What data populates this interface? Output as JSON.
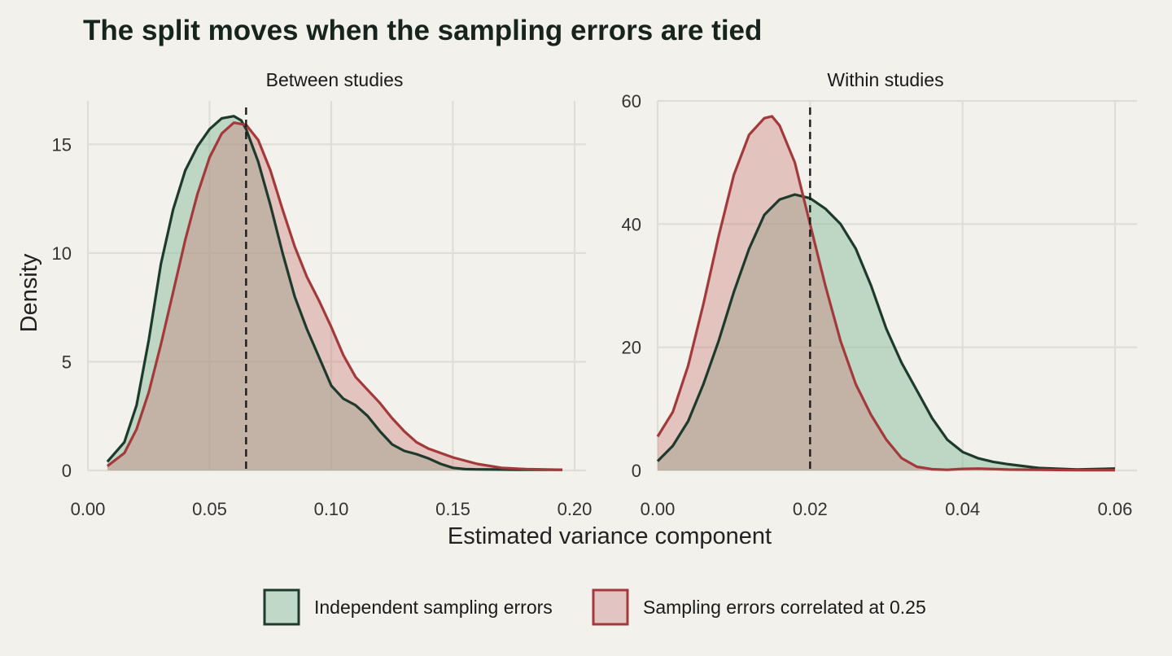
{
  "chart_data": {
    "type": "area",
    "title": "The split moves when the sampling errors are tied",
    "xlabel": "Estimated variance component",
    "ylabel": "Density",
    "legend": {
      "position": "bottom",
      "entries": [
        {
          "name": "Independent sampling errors",
          "fill": "#c0d8c8",
          "stroke": "#1e3a2c"
        },
        {
          "name": "Sampling errors correlated at 0.25",
          "fill": "#e2c4c2",
          "stroke": "#a4393c"
        }
      ]
    },
    "grid": true,
    "panels": [
      {
        "strip": "Between studies",
        "xlim": [
          0,
          0.2
        ],
        "ylim": [
          0,
          17
        ],
        "xticks": [
          0,
          0.05,
          0.1,
          0.15,
          0.2
        ],
        "xtick_labels": [
          "0.00",
          "0.05",
          "0.10",
          "0.15",
          "0.20"
        ],
        "yticks": [
          0,
          5,
          10,
          15
        ],
        "ytick_labels": [
          "0",
          "5",
          "10",
          "15"
        ],
        "vline": 0.065,
        "series": [
          {
            "name": "Independent sampling errors",
            "x": [
              0.008,
              0.015,
              0.02,
              0.025,
              0.03,
              0.035,
              0.04,
              0.045,
              0.05,
              0.055,
              0.06,
              0.063,
              0.065,
              0.07,
              0.075,
              0.08,
              0.085,
              0.09,
              0.095,
              0.1,
              0.105,
              0.11,
              0.115,
              0.12,
              0.125,
              0.13,
              0.135,
              0.14,
              0.145,
              0.15,
              0.155,
              0.16,
              0.17,
              0.18,
              0.195
            ],
            "y": [
              0.4,
              1.3,
              3.0,
              6.0,
              9.5,
              12.0,
              13.8,
              14.9,
              15.7,
              16.2,
              16.3,
              16.1,
              15.7,
              14.2,
              12.2,
              10.0,
              8.0,
              6.5,
              5.2,
              3.9,
              3.3,
              3.0,
              2.5,
              1.8,
              1.2,
              0.9,
              0.75,
              0.55,
              0.3,
              0.12,
              0.06,
              0.05,
              0.04,
              0.03,
              0.03
            ]
          },
          {
            "name": "Sampling errors correlated at 0.25",
            "x": [
              0.008,
              0.015,
              0.02,
              0.025,
              0.03,
              0.035,
              0.04,
              0.045,
              0.05,
              0.055,
              0.06,
              0.065,
              0.07,
              0.075,
              0.08,
              0.085,
              0.09,
              0.095,
              0.1,
              0.105,
              0.11,
              0.115,
              0.12,
              0.125,
              0.13,
              0.135,
              0.14,
              0.145,
              0.15,
              0.155,
              0.16,
              0.17,
              0.18,
              0.195
            ],
            "y": [
              0.2,
              0.8,
              1.9,
              3.6,
              5.8,
              8.2,
              10.6,
              12.7,
              14.4,
              15.5,
              16.0,
              15.9,
              15.2,
              13.8,
              12.0,
              10.3,
              8.9,
              7.8,
              6.6,
              5.3,
              4.3,
              3.7,
              3.1,
              2.4,
              1.8,
              1.3,
              1.0,
              0.8,
              0.6,
              0.45,
              0.3,
              0.12,
              0.06,
              0.03
            ]
          }
        ]
      },
      {
        "strip": "Within studies",
        "xlim": [
          0,
          0.06
        ],
        "ylim": [
          0,
          60
        ],
        "xticks": [
          0,
          0.02,
          0.04,
          0.06
        ],
        "xtick_labels": [
          "0.00",
          "0.02",
          "0.04",
          "0.06"
        ],
        "yticks": [
          0,
          20,
          40,
          60
        ],
        "ytick_labels": [
          "0",
          "20",
          "40",
          "60"
        ],
        "vline": 0.02,
        "series": [
          {
            "name": "Independent sampling errors",
            "x": [
              0.0,
              0.002,
              0.004,
              0.006,
              0.008,
              0.01,
              0.012,
              0.014,
              0.016,
              0.018,
              0.02,
              0.022,
              0.024,
              0.026,
              0.028,
              0.03,
              0.032,
              0.034,
              0.036,
              0.038,
              0.04,
              0.042,
              0.044,
              0.046,
              0.05,
              0.055,
              0.06
            ],
            "y": [
              1.5,
              4.0,
              8.0,
              14.0,
              21.0,
              29.0,
              36.0,
              41.5,
              44.0,
              44.8,
              44.2,
              42.5,
              40.0,
              36.0,
              30.0,
              23.0,
              17.5,
              13.0,
              8.5,
              5.0,
              3.0,
              2.0,
              1.4,
              1.0,
              0.4,
              0.15,
              0.3
            ]
          },
          {
            "name": "Sampling errors correlated at 0.25",
            "x": [
              0.0,
              0.002,
              0.004,
              0.006,
              0.008,
              0.01,
              0.012,
              0.014,
              0.015,
              0.016,
              0.018,
              0.02,
              0.022,
              0.024,
              0.026,
              0.028,
              0.03,
              0.032,
              0.034,
              0.036,
              0.038,
              0.04,
              0.042,
              0.046,
              0.05,
              0.055,
              0.06
            ],
            "y": [
              5.5,
              9.5,
              17.0,
              27.0,
              38.0,
              48.0,
              54.5,
              57.2,
              57.5,
              56.0,
              50.0,
              40.0,
              30.0,
              21.0,
              14.0,
              9.0,
              5.0,
              2.0,
              0.6,
              0.2,
              0.1,
              0.25,
              0.3,
              0.15,
              0.1,
              0.05,
              0.05
            ]
          }
        ]
      }
    ]
  }
}
